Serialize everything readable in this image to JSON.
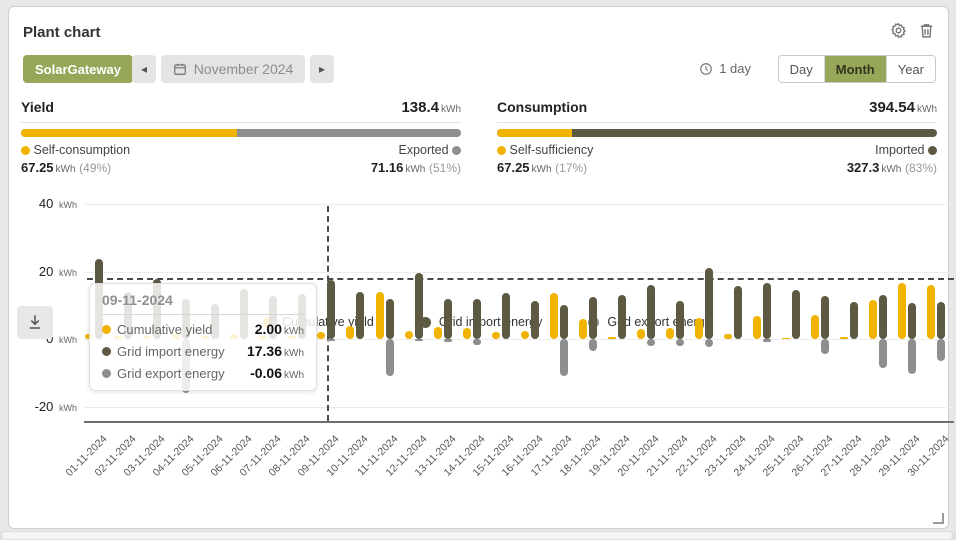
{
  "header": {
    "title": "Plant chart"
  },
  "toolbar": {
    "gateway_label": "SolarGateway",
    "prev_label": "◂",
    "period_label": "November 2024",
    "next_label": "▸",
    "resolution_label": "1 day",
    "views": [
      {
        "label": "Day",
        "active": false
      },
      {
        "label": "Month",
        "active": true
      },
      {
        "label": "Year",
        "active": false
      }
    ]
  },
  "yield_panel": {
    "title": "Yield",
    "total": "138.4",
    "unit": "kWh",
    "left_label": "Self-consumption",
    "left_value": "67.25",
    "left_unit": "kWh",
    "left_pct": "(49%)",
    "left_pct_num": 49,
    "right_label": "Exported",
    "right_value": "71.16",
    "right_unit": "kWh",
    "right_pct": "(51%)"
  },
  "consumption_panel": {
    "title": "Consumption",
    "total": "394.54",
    "unit": "kWh",
    "left_label": "Self-sufficiency",
    "left_value": "67.25",
    "left_unit": "kWh",
    "left_pct": "(17%)",
    "left_pct_num": 17,
    "right_label": "Imported",
    "right_value": "327.3",
    "right_unit": "kWh",
    "right_pct": "(83%)"
  },
  "tooltip": {
    "date": "09-11-2024",
    "rows": [
      {
        "label": "Cumulative yield",
        "value": "2.00",
        "unit": "kWh",
        "color": "#F0B400"
      },
      {
        "label": "Grid import energy",
        "value": "17.36",
        "unit": "kWh",
        "color": "#5E5942"
      },
      {
        "label": "Grid export energy",
        "value": "-0.06",
        "unit": "kWh",
        "color": "#8E8E8E"
      }
    ]
  },
  "chart_data": {
    "type": "bar",
    "unit": "kWh",
    "ylim": [
      -20,
      40
    ],
    "yticks": [
      40,
      20,
      0,
      -20
    ],
    "reference_line_y": 18,
    "selected_x": "09-11-2024",
    "grid": true,
    "legend_position": "bottom",
    "x": [
      "01-11-2024",
      "02-11-2024",
      "03-11-2024",
      "04-11-2024",
      "05-11-2024",
      "06-11-2024",
      "07-11-2024",
      "08-11-2024",
      "09-11-2024",
      "10-11-2024",
      "11-11-2024",
      "12-11-2024",
      "13-11-2024",
      "14-11-2024",
      "15-11-2024",
      "16-11-2024",
      "17-11-2024",
      "18-11-2024",
      "19-11-2024",
      "20-11-2024",
      "21-11-2024",
      "22-11-2024",
      "23-11-2024",
      "24-11-2024",
      "25-11-2024",
      "26-11-2024",
      "27-11-2024",
      "28-11-2024",
      "29-11-2024",
      "30-11-2024"
    ],
    "series": [
      {
        "name": "Cumulative yield",
        "color": "#F0B400",
        "values": [
          1.5,
          1.0,
          1.0,
          1.5,
          1.0,
          1.5,
          1.0,
          1.0,
          2.0,
          4.0,
          13.9,
          2.5,
          3.6,
          3.2,
          2.0,
          2.3,
          13.5,
          6.0,
          0.5,
          3.0,
          3.2,
          6.3,
          1.5,
          6.8,
          0.3,
          7.0,
          0.5,
          11.5,
          16.6,
          16.0
        ]
      },
      {
        "name": "Grid import energy",
        "color": "#5E5942",
        "values": [
          23.7,
          14.0,
          17.8,
          11.8,
          10.4,
          14.8,
          12.7,
          13.3,
          17.36,
          14.0,
          12.0,
          19.5,
          11.8,
          12.0,
          13.5,
          11.2,
          10.0,
          12.5,
          13.0,
          15.9,
          11.3,
          21.1,
          15.7,
          16.5,
          14.4,
          12.8,
          10.9,
          13.0,
          10.6,
          11.0
        ]
      },
      {
        "name": "Grid export energy",
        "color": "#8E8E8E",
        "values": [
          0,
          0,
          0,
          -16.0,
          0,
          0,
          0,
          0,
          -0.06,
          0,
          -11.0,
          -0.4,
          -0.8,
          -1.8,
          0,
          0,
          -11.0,
          -3.5,
          0,
          -2.0,
          -2.0,
          -2.5,
          0,
          -0.8,
          0,
          -4.5,
          0,
          -8.5,
          -10.5,
          -6.5
        ]
      }
    ]
  },
  "colors": {
    "accent_green": "#96A75A",
    "yield_yellow": "#F0B400",
    "import_olive": "#5E5942",
    "export_gray": "#8E8E8E"
  },
  "icons": {
    "gear": "gear-icon",
    "trash": "trash-icon",
    "clock": "clock-icon",
    "calendar": "calendar-icon",
    "download": "download-icon"
  }
}
